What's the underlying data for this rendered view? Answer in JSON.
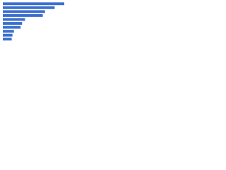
{
  "chart_data": {
    "type": "bar",
    "orientation": "horizontal",
    "categories": [
      null,
      null,
      null,
      null,
      null,
      null,
      null,
      null,
      null,
      null
    ],
    "values": [
      83,
      70,
      57,
      54,
      30,
      26,
      24,
      15,
      13,
      12
    ],
    "color": "#3a6fce"
  }
}
